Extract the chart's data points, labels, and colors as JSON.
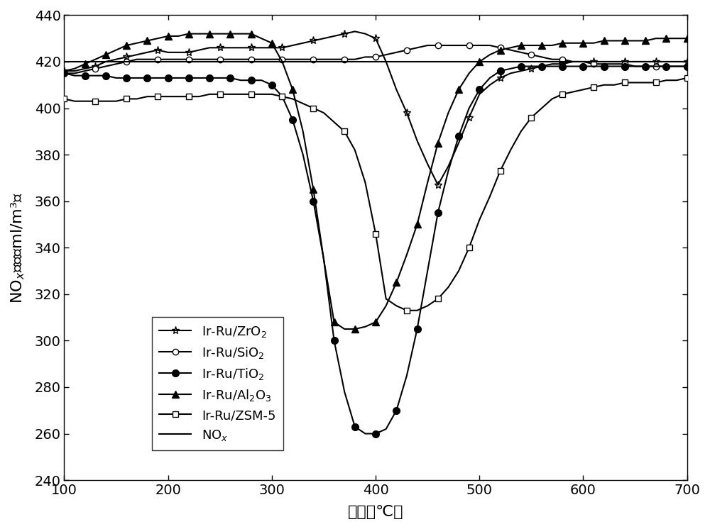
{
  "xlim": [
    100,
    700
  ],
  "ylim": [
    240,
    440
  ],
  "yticks": [
    240,
    260,
    280,
    300,
    320,
    340,
    360,
    380,
    400,
    420,
    440
  ],
  "xticks": [
    100,
    200,
    300,
    400,
    500,
    600,
    700
  ],
  "NOx_y": 420,
  "ZrO2": {
    "x": [
      100,
      110,
      120,
      130,
      140,
      150,
      160,
      170,
      180,
      190,
      200,
      210,
      220,
      230,
      240,
      250,
      260,
      270,
      280,
      290,
      300,
      310,
      320,
      330,
      340,
      350,
      360,
      370,
      380,
      390,
      400,
      410,
      420,
      430,
      440,
      450,
      460,
      470,
      480,
      490,
      500,
      510,
      520,
      530,
      540,
      550,
      560,
      570,
      580,
      590,
      600,
      610,
      620,
      630,
      640,
      650,
      660,
      670,
      680,
      690,
      700
    ],
    "y": [
      416,
      416,
      417,
      418,
      420,
      421,
      422,
      423,
      424,
      425,
      424,
      424,
      424,
      425,
      426,
      426,
      426,
      426,
      426,
      426,
      426,
      426,
      427,
      428,
      429,
      430,
      431,
      432,
      433,
      432,
      430,
      420,
      408,
      398,
      386,
      376,
      367,
      375,
      385,
      396,
      406,
      410,
      413,
      415,
      416,
      417,
      418,
      419,
      419,
      420,
      420,
      420,
      420,
      420,
      420,
      420,
      420,
      420,
      420,
      420,
      420
    ]
  },
  "SiO2": {
    "x": [
      100,
      110,
      120,
      130,
      140,
      150,
      160,
      170,
      180,
      190,
      200,
      210,
      220,
      230,
      240,
      250,
      260,
      270,
      280,
      290,
      300,
      310,
      320,
      330,
      340,
      350,
      360,
      370,
      380,
      390,
      400,
      410,
      420,
      430,
      440,
      450,
      460,
      470,
      480,
      490,
      500,
      510,
      520,
      530,
      540,
      550,
      560,
      570,
      580,
      590,
      600,
      610,
      620,
      630,
      640,
      650,
      660,
      670,
      680,
      690,
      700
    ],
    "y": [
      415,
      415,
      416,
      417,
      418,
      419,
      420,
      421,
      421,
      421,
      421,
      421,
      421,
      421,
      421,
      421,
      421,
      421,
      421,
      421,
      421,
      421,
      421,
      421,
      421,
      421,
      421,
      421,
      421,
      422,
      422,
      423,
      424,
      425,
      426,
      427,
      427,
      427,
      427,
      427,
      427,
      427,
      426,
      425,
      424,
      423,
      422,
      421,
      421,
      420,
      420,
      419,
      419,
      419,
      419,
      418,
      418,
      418,
      418,
      418,
      418
    ]
  },
  "TiO2": {
    "x": [
      100,
      110,
      120,
      130,
      140,
      150,
      160,
      170,
      180,
      190,
      200,
      210,
      220,
      230,
      240,
      250,
      260,
      270,
      280,
      290,
      300,
      310,
      320,
      330,
      340,
      350,
      360,
      370,
      380,
      390,
      400,
      410,
      420,
      430,
      440,
      450,
      460,
      470,
      480,
      490,
      500,
      510,
      520,
      530,
      540,
      550,
      560,
      570,
      580,
      590,
      600,
      610,
      620,
      630,
      640,
      650,
      660,
      670,
      680,
      690,
      700
    ],
    "y": [
      415,
      414,
      414,
      414,
      414,
      413,
      413,
      413,
      413,
      413,
      413,
      413,
      413,
      413,
      413,
      413,
      413,
      412,
      412,
      412,
      410,
      405,
      395,
      380,
      360,
      335,
      300,
      278,
      263,
      260,
      260,
      262,
      270,
      285,
      305,
      330,
      355,
      373,
      388,
      400,
      408,
      413,
      416,
      417,
      418,
      418,
      418,
      418,
      418,
      418,
      418,
      418,
      418,
      418,
      418,
      418,
      418,
      418,
      418,
      418,
      418
    ]
  },
  "Al2O3": {
    "x": [
      100,
      110,
      120,
      130,
      140,
      150,
      160,
      170,
      180,
      190,
      200,
      210,
      220,
      230,
      240,
      250,
      260,
      270,
      280,
      290,
      300,
      310,
      320,
      330,
      340,
      350,
      360,
      370,
      380,
      390,
      400,
      410,
      420,
      430,
      440,
      450,
      460,
      470,
      480,
      490,
      500,
      510,
      520,
      530,
      540,
      550,
      560,
      570,
      580,
      590,
      600,
      610,
      620,
      630,
      640,
      650,
      660,
      670,
      680,
      690,
      700
    ],
    "y": [
      416,
      417,
      419,
      421,
      423,
      425,
      427,
      428,
      429,
      430,
      431,
      431,
      432,
      432,
      432,
      432,
      432,
      432,
      432,
      430,
      428,
      420,
      408,
      390,
      365,
      335,
      308,
      305,
      305,
      306,
      308,
      315,
      325,
      337,
      350,
      368,
      385,
      398,
      408,
      415,
      420,
      423,
      425,
      426,
      427,
      427,
      427,
      427,
      428,
      428,
      428,
      428,
      429,
      429,
      429,
      429,
      429,
      430,
      430,
      430,
      430
    ]
  },
  "ZSM5": {
    "x": [
      100,
      110,
      120,
      130,
      140,
      150,
      160,
      170,
      180,
      190,
      200,
      210,
      220,
      230,
      240,
      250,
      260,
      270,
      280,
      290,
      300,
      310,
      320,
      330,
      340,
      350,
      360,
      370,
      380,
      390,
      400,
      410,
      420,
      430,
      440,
      450,
      460,
      470,
      480,
      490,
      500,
      510,
      520,
      530,
      540,
      550,
      560,
      570,
      580,
      590,
      600,
      610,
      620,
      630,
      640,
      650,
      660,
      670,
      680,
      690,
      700
    ],
    "y": [
      404,
      403,
      403,
      403,
      403,
      403,
      404,
      404,
      405,
      405,
      405,
      405,
      405,
      405,
      406,
      406,
      406,
      406,
      406,
      406,
      406,
      405,
      404,
      402,
      400,
      398,
      394,
      390,
      382,
      368,
      346,
      318,
      315,
      313,
      313,
      315,
      318,
      323,
      330,
      340,
      352,
      362,
      373,
      382,
      390,
      396,
      400,
      404,
      406,
      407,
      408,
      409,
      410,
      410,
      411,
      411,
      411,
      411,
      412,
      412,
      413
    ]
  }
}
